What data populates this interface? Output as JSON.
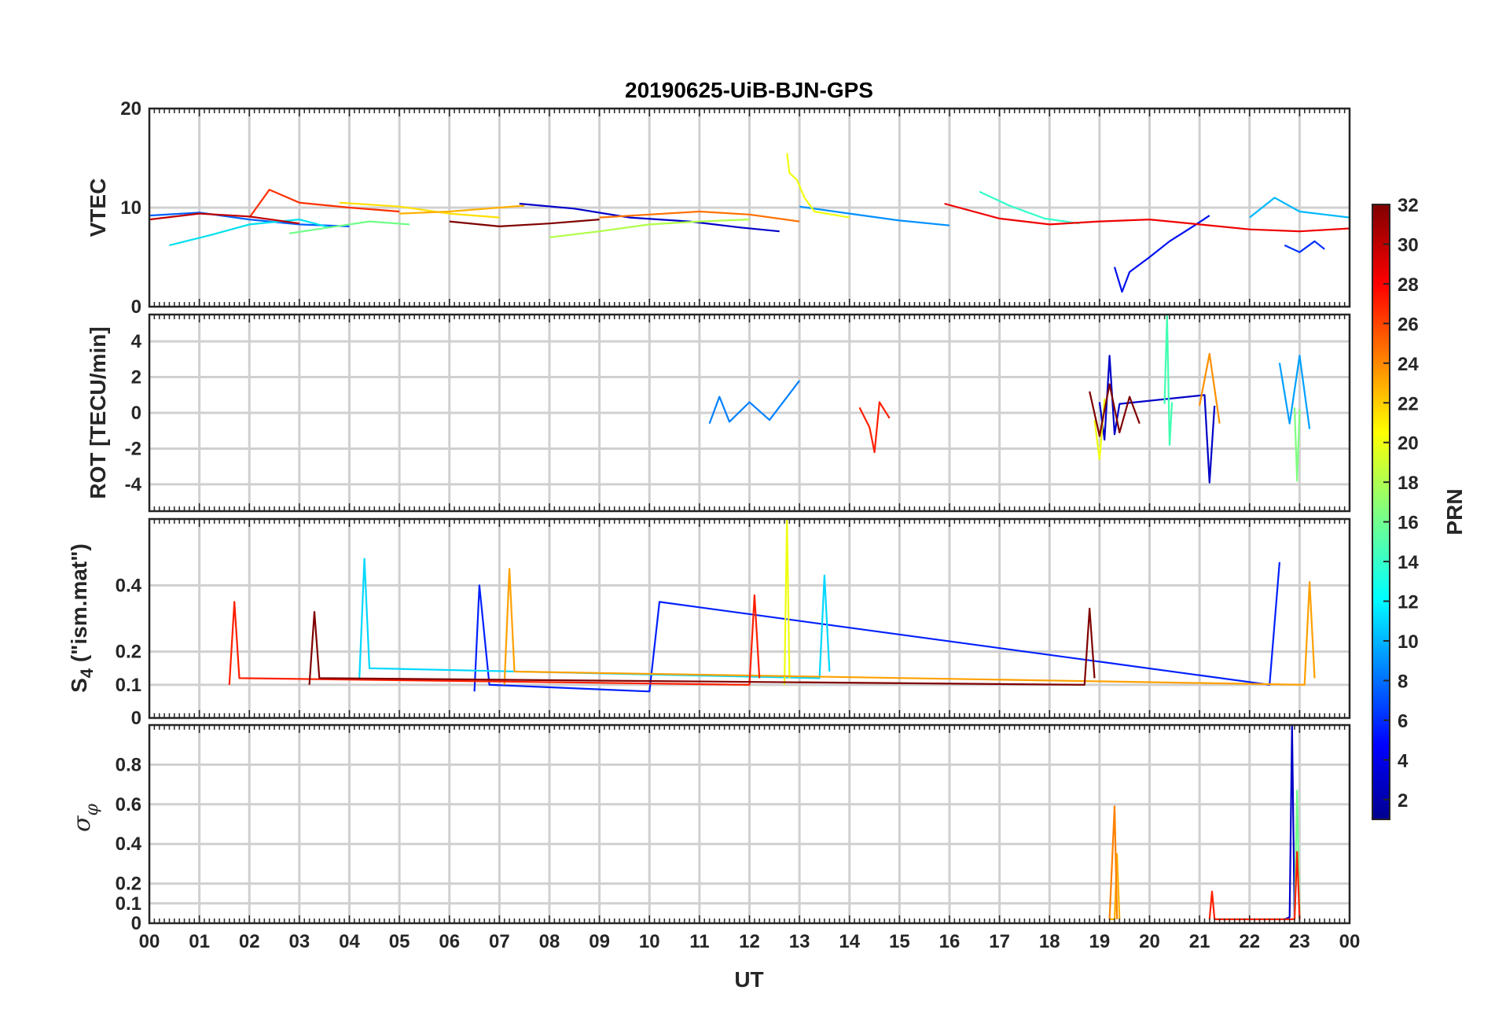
{
  "title": "20190625-UiB-BJN-GPS",
  "xlabel": "UT",
  "x_tick_labels": [
    "00",
    "01",
    "02",
    "03",
    "04",
    "05",
    "06",
    "07",
    "08",
    "09",
    "10",
    "11",
    "12",
    "13",
    "14",
    "15",
    "16",
    "17",
    "18",
    "19",
    "20",
    "21",
    "22",
    "23",
    "00"
  ],
  "colorbar": {
    "label": "PRN",
    "range": [
      1,
      32
    ],
    "ticks": [
      2,
      4,
      6,
      8,
      10,
      12,
      14,
      16,
      18,
      20,
      22,
      24,
      26,
      28,
      30,
      32
    ],
    "colormap": "jet"
  },
  "chart_data": [
    {
      "type": "line",
      "panel": "VTEC",
      "ylabel": "VTEC",
      "xlim": [
        0,
        24
      ],
      "ylim": [
        0,
        20
      ],
      "yticks": [
        0,
        10,
        20
      ],
      "grid": true,
      "series": [
        {
          "prn": 2,
          "color": "#0000c8",
          "x": [
            7.4,
            8.5,
            9.6,
            10.8,
            11.8,
            12.6
          ],
          "y": [
            10.4,
            9.9,
            9.0,
            8.6,
            8.0,
            7.6
          ]
        },
        {
          "prn": 3,
          "color": "#0010f0",
          "x": [
            19.3,
            19.45,
            19.6,
            20.0,
            20.4,
            20.9,
            21.2
          ],
          "y": [
            4.0,
            1.5,
            3.5,
            5.0,
            6.6,
            8.2,
            9.2
          ]
        },
        {
          "prn": 5,
          "color": "#0030ff",
          "x": [
            22.7,
            23.0,
            23.3,
            23.5
          ],
          "y": [
            6.2,
            5.5,
            6.6,
            5.8
          ]
        },
        {
          "prn": 6,
          "color": "#0060ff",
          "x": [
            0.0,
            1.0,
            2.0,
            3.0,
            4.0
          ],
          "y": [
            9.2,
            9.5,
            8.8,
            8.3,
            8.1
          ]
        },
        {
          "prn": 8,
          "color": "#0090ff",
          "x": [
            13.0,
            14.0,
            15.0,
            16.0
          ],
          "y": [
            10.1,
            9.4,
            8.7,
            8.2
          ]
        },
        {
          "prn": 10,
          "color": "#00b8ff",
          "x": [
            22.0,
            22.5,
            23.0,
            23.5,
            24.0
          ],
          "y": [
            9.0,
            11.0,
            9.6,
            9.3,
            9.0
          ]
        },
        {
          "prn": 12,
          "color": "#00e0f0",
          "x": [
            0.4,
            1.2,
            2.0,
            3.0,
            3.6
          ],
          "y": [
            6.2,
            7.2,
            8.3,
            8.8,
            8.0
          ]
        },
        {
          "prn": 14,
          "color": "#30ffc8",
          "x": [
            16.6,
            17.2,
            17.9,
            18.6
          ],
          "y": [
            11.6,
            10.2,
            8.9,
            8.4
          ]
        },
        {
          "prn": 16,
          "color": "#70ff88",
          "x": [
            2.8,
            3.6,
            4.4,
            5.2
          ],
          "y": [
            7.4,
            8.0,
            8.6,
            8.3
          ]
        },
        {
          "prn": 18,
          "color": "#b0ff48",
          "x": [
            8.0,
            9.0,
            10.0,
            11.0,
            12.0
          ],
          "y": [
            7.0,
            7.6,
            8.3,
            8.6,
            8.8
          ]
        },
        {
          "prn": 20,
          "color": "#f0ff10",
          "x": [
            12.75,
            12.8,
            12.95,
            13.1,
            13.3,
            14.0
          ],
          "y": [
            15.5,
            13.5,
            12.8,
            11.0,
            9.6,
            9.0
          ]
        },
        {
          "prn": 21,
          "color": "#ffe000",
          "x": [
            3.8,
            5.0,
            6.0,
            7.0
          ],
          "y": [
            10.5,
            10.1,
            9.4,
            9.0
          ]
        },
        {
          "prn": 23,
          "color": "#ffb000",
          "x": [
            5.0,
            6.0,
            7.0,
            7.5
          ],
          "y": [
            9.4,
            9.6,
            10.0,
            10.2
          ]
        },
        {
          "prn": 25,
          "color": "#ff7000",
          "x": [
            9.0,
            10.0,
            11.0,
            12.0,
            13.0
          ],
          "y": [
            9.0,
            9.3,
            9.6,
            9.3,
            8.6
          ]
        },
        {
          "prn": 27,
          "color": "#ff3000",
          "x": [
            2.0,
            2.4,
            3.0,
            4.0,
            5.0
          ],
          "y": [
            9.0,
            11.8,
            10.5,
            10.0,
            9.6
          ]
        },
        {
          "prn": 28,
          "color": "#f00000",
          "x": [
            15.9,
            17.0,
            18.0,
            19.0,
            20.0,
            21.0,
            22.0,
            23.0,
            24.0
          ],
          "y": [
            10.4,
            8.9,
            8.3,
            8.6,
            8.8,
            8.3,
            7.8,
            7.6,
            7.9
          ]
        },
        {
          "prn": 30,
          "color": "#c00000",
          "x": [
            0.0,
            1.0,
            2.0,
            3.0
          ],
          "y": [
            8.8,
            9.4,
            9.1,
            8.4
          ]
        },
        {
          "prn": 32,
          "color": "#800000",
          "x": [
            6.0,
            7.0,
            8.0,
            9.0
          ],
          "y": [
            8.6,
            8.1,
            8.4,
            8.8
          ]
        }
      ]
    },
    {
      "type": "line",
      "panel": "ROT",
      "ylabel": "ROT [TECU/min]",
      "xlim": [
        0,
        24
      ],
      "ylim": [
        -5.5,
        5.5
      ],
      "yticks": [
        -4,
        -2,
        0,
        2,
        4
      ],
      "grid": true,
      "series": [
        {
          "prn": 3,
          "color": "#0000c8",
          "x": [
            19.0,
            19.1,
            19.2,
            19.3,
            19.4,
            21.1,
            21.2,
            21.3
          ],
          "y": [
            0.6,
            -1.5,
            3.2,
            -1.2,
            0.5,
            1.0,
            -3.9,
            0.4
          ]
        },
        {
          "prn": 8,
          "color": "#0080ff",
          "x": [
            11.2,
            11.4,
            11.6,
            12.0,
            12.4,
            13.0
          ],
          "y": [
            -0.6,
            0.9,
            -0.5,
            0.6,
            -0.4,
            1.8
          ]
        },
        {
          "prn": 10,
          "color": "#00a0ff",
          "x": [
            22.6,
            22.8,
            23.0,
            23.2
          ],
          "y": [
            2.8,
            -0.6,
            3.2,
            -0.9
          ]
        },
        {
          "prn": 14,
          "color": "#40ffb0",
          "x": [
            20.3,
            20.35,
            20.4,
            20.45
          ],
          "y": [
            0.5,
            5.5,
            -1.8,
            0.6
          ]
        },
        {
          "prn": 16,
          "color": "#80ff80",
          "x": [
            22.9,
            22.95,
            23.0
          ],
          "y": [
            0.3,
            -3.8,
            0.2
          ]
        },
        {
          "prn": 20,
          "color": "#f0ff10",
          "x": [
            18.9,
            19.0,
            19.1
          ],
          "y": [
            -0.4,
            -2.6,
            0.8
          ]
        },
        {
          "prn": 24,
          "color": "#ff9000",
          "x": [
            21.0,
            21.2,
            21.4
          ],
          "y": [
            0.4,
            3.3,
            -0.6
          ]
        },
        {
          "prn": 28,
          "color": "#ff2000",
          "x": [
            14.2,
            14.4,
            14.5,
            14.6,
            14.8
          ],
          "y": [
            0.3,
            -0.8,
            -2.2,
            0.6,
            -0.3
          ]
        },
        {
          "prn": 32,
          "color": "#800000",
          "x": [
            18.8,
            19.0,
            19.2,
            19.4,
            19.6,
            19.8
          ],
          "y": [
            1.2,
            -1.3,
            1.6,
            -1.1,
            0.9,
            -0.6
          ]
        }
      ]
    },
    {
      "type": "line",
      "panel": "S4",
      "ylabel": "S4 (\"ism.mat\")",
      "xlim": [
        0,
        24
      ],
      "ylim": [
        0,
        0.6
      ],
      "yticks": [
        0,
        0.1,
        0.2,
        0.4
      ],
      "grid": true,
      "series": [
        {
          "prn": 4,
          "color": "#0020ff",
          "x": [
            6.5,
            6.6,
            6.8,
            10.0,
            10.2,
            22.4,
            22.6
          ],
          "y": [
            0.08,
            0.4,
            0.1,
            0.08,
            0.35,
            0.1,
            0.47
          ]
        },
        {
          "prn": 12,
          "color": "#00d8ff",
          "x": [
            4.2,
            4.3,
            4.4,
            13.4,
            13.5,
            13.6
          ],
          "y": [
            0.12,
            0.48,
            0.15,
            0.12,
            0.43,
            0.14
          ]
        },
        {
          "prn": 20,
          "color": "#f0ff10",
          "x": [
            12.7,
            12.75,
            12.8
          ],
          "y": [
            0.1,
            0.6,
            0.12
          ]
        },
        {
          "prn": 22,
          "color": "#ffa000",
          "x": [
            7.1,
            7.2,
            7.3,
            23.1,
            23.2,
            23.3
          ],
          "y": [
            0.1,
            0.45,
            0.14,
            0.1,
            0.41,
            0.12
          ]
        },
        {
          "prn": 28,
          "color": "#ff2000",
          "x": [
            1.6,
            1.7,
            1.8,
            12.0,
            12.1,
            12.2
          ],
          "y": [
            0.1,
            0.35,
            0.12,
            0.1,
            0.37,
            0.12
          ]
        },
        {
          "prn": 32,
          "color": "#800000",
          "x": [
            3.2,
            3.3,
            3.4,
            18.7,
            18.8,
            18.9
          ],
          "y": [
            0.1,
            0.32,
            0.12,
            0.1,
            0.33,
            0.12
          ]
        }
      ]
    },
    {
      "type": "line",
      "panel": "sigma-phi",
      "ylabel": "σ φ",
      "xlim": [
        0,
        24
      ],
      "ylim": [
        0,
        1.0
      ],
      "yticks": [
        0,
        0.1,
        0.2,
        0.4,
        0.6,
        0.8
      ],
      "grid": true,
      "series": [
        {
          "prn": 2,
          "color": "#0000c8",
          "x": [
            22.7,
            22.8,
            22.85,
            22.9
          ],
          "y": [
            0.02,
            0.03,
            1.0,
            0.02
          ]
        },
        {
          "prn": 16,
          "color": "#70ff88",
          "x": [
            22.9,
            22.95,
            23.0
          ],
          "y": [
            0.02,
            0.67,
            0.02
          ]
        },
        {
          "prn": 22,
          "color": "#ffb000",
          "x": [
            19.2,
            19.3,
            19.35,
            19.4
          ],
          "y": [
            0.02,
            0.02,
            0.35,
            0.02
          ]
        },
        {
          "prn": 24,
          "color": "#ff8000",
          "x": [
            19.2,
            19.3,
            19.35
          ],
          "y": [
            0.02,
            0.59,
            0.02
          ]
        },
        {
          "prn": 28,
          "color": "#ff2000",
          "x": [
            21.2,
            21.25,
            21.3,
            22.9,
            22.95,
            23.0
          ],
          "y": [
            0.02,
            0.16,
            0.02,
            0.02,
            0.36,
            0.02
          ]
        }
      ]
    }
  ]
}
